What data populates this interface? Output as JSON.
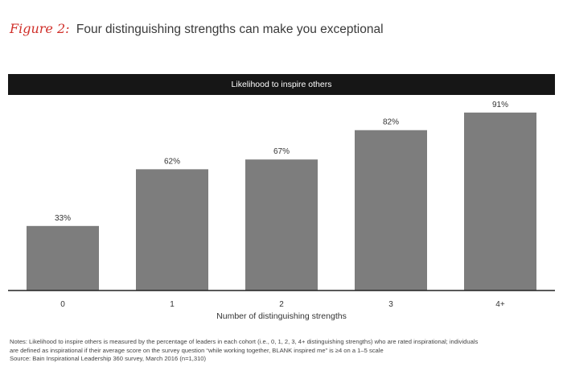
{
  "figure": {
    "label": "Figure 2:",
    "title": "Four distinguishing strengths can make you exceptional"
  },
  "chart_data": {
    "type": "bar",
    "title": "Likelihood to inspire others",
    "categories": [
      "0",
      "1",
      "2",
      "3",
      "4+"
    ],
    "values": [
      33,
      62,
      67,
      82,
      91
    ],
    "value_labels": [
      "33%",
      "62%",
      "67%",
      "82%",
      "91%"
    ],
    "xlabel": "Number of distinguishing strengths",
    "ylabel": "",
    "ylim": [
      0,
      100
    ],
    "grid": false,
    "bar_color": "#7d7d7d"
  },
  "notes": {
    "line1": "Notes: Likelihood to inspire others is measured by the percentage of leaders in each cohort (i.e., 0, 1, 2, 3, 4+ distinguishing strengths) who are rated inspirational; individuals",
    "line2": "are defined as inspirational if their average score on the survey question “while working together, BLANK inspired me” is ≥4 on a 1–5 scale",
    "source": "Source: Bain Inspirational Leadership 360 survey, March 2016 (n=1,310)"
  }
}
